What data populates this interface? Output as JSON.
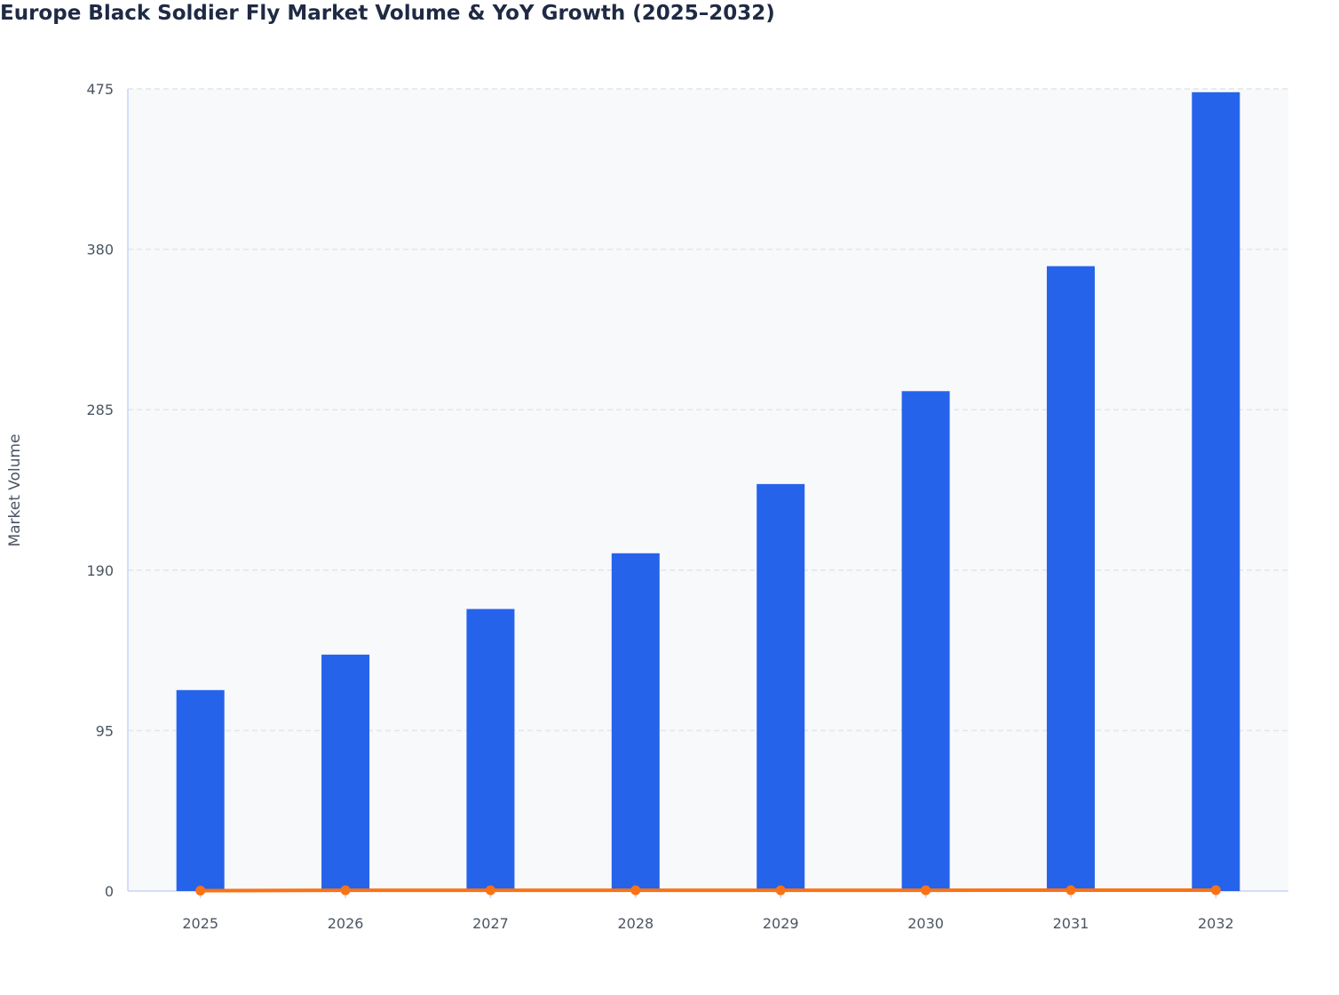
{
  "chart_data": {
    "type": "bar",
    "title": "Europe Black Soldier Fly Market Volume & YoY Growth (2025–2032)",
    "xlabel": "",
    "ylabel": "Market Volume",
    "categories": [
      "2025",
      "2026",
      "2027",
      "2028",
      "2029",
      "2030",
      "2031",
      "2032"
    ],
    "ylim": [
      0,
      475
    ],
    "yticks": [
      0,
      95,
      190,
      285,
      380,
      475
    ],
    "grid": true,
    "series": [
      {
        "type": "bar",
        "values": [
          119,
          140,
          167,
          200,
          241,
          296,
          370,
          473
        ],
        "color": "#2563eb"
      },
      {
        "type": "line",
        "values": [
          0,
          0.18,
          0.19,
          0.2,
          0.2,
          0.23,
          0.25,
          0.28
        ],
        "color": "#f97316"
      }
    ]
  }
}
